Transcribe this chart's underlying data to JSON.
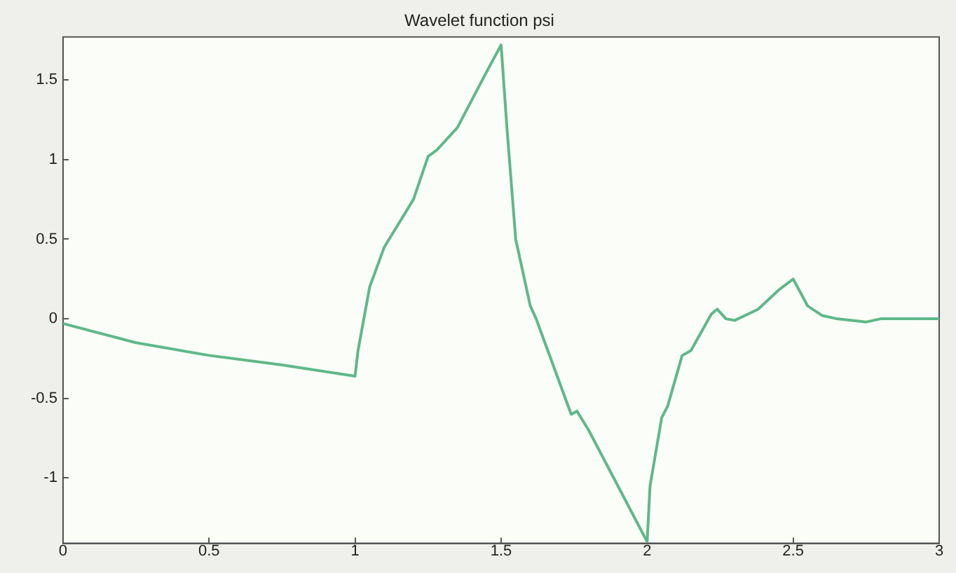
{
  "chart_data": {
    "type": "line",
    "title": "Wavelet function psi",
    "series": [
      {
        "color": "#5fb88a",
        "x": [
          0,
          0.25,
          0.5,
          0.75,
          1,
          1.01,
          1.05,
          1.1,
          1.15,
          1.2,
          1.25,
          1.28,
          1.35,
          1.45,
          1.5,
          1.52,
          1.55,
          1.6,
          1.62,
          1.65,
          1.7,
          1.74,
          1.76,
          1.8,
          1.9,
          2,
          2.01,
          2.05,
          2.07,
          2.12,
          2.15,
          2.22,
          2.24,
          2.27,
          2.3,
          2.38,
          2.45,
          2.5,
          2.55,
          2.6,
          2.65,
          2.75,
          2.8,
          2.9,
          3
        ],
        "values": [
          -0.03,
          -0.15,
          -0.23,
          -0.29,
          -0.36,
          -0.2,
          0.2,
          0.45,
          0.6,
          0.75,
          1.02,
          1.06,
          1.2,
          1.55,
          1.72,
          1.2,
          0.5,
          0.08,
          0,
          -0.15,
          -0.4,
          -0.6,
          -0.58,
          -0.7,
          -1.05,
          -1.4,
          -1.05,
          -0.62,
          -0.55,
          -0.23,
          -0.2,
          0.03,
          0.06,
          0,
          -0.01,
          0.06,
          0.18,
          0.25,
          0.08,
          0.02,
          0,
          -0.02,
          0,
          0,
          0
        ]
      }
    ],
    "xlim": [
      0,
      3
    ],
    "xticks": [
      0,
      0.5,
      1,
      1.5,
      2,
      2.5,
      3
    ],
    "ylim": [
      -1.41,
      1.77
    ],
    "yticks": [
      -1,
      -0.5,
      0,
      0.5,
      1,
      1.5
    ],
    "grid": false,
    "legend": false,
    "marker": "none",
    "line_style": "solid"
  }
}
